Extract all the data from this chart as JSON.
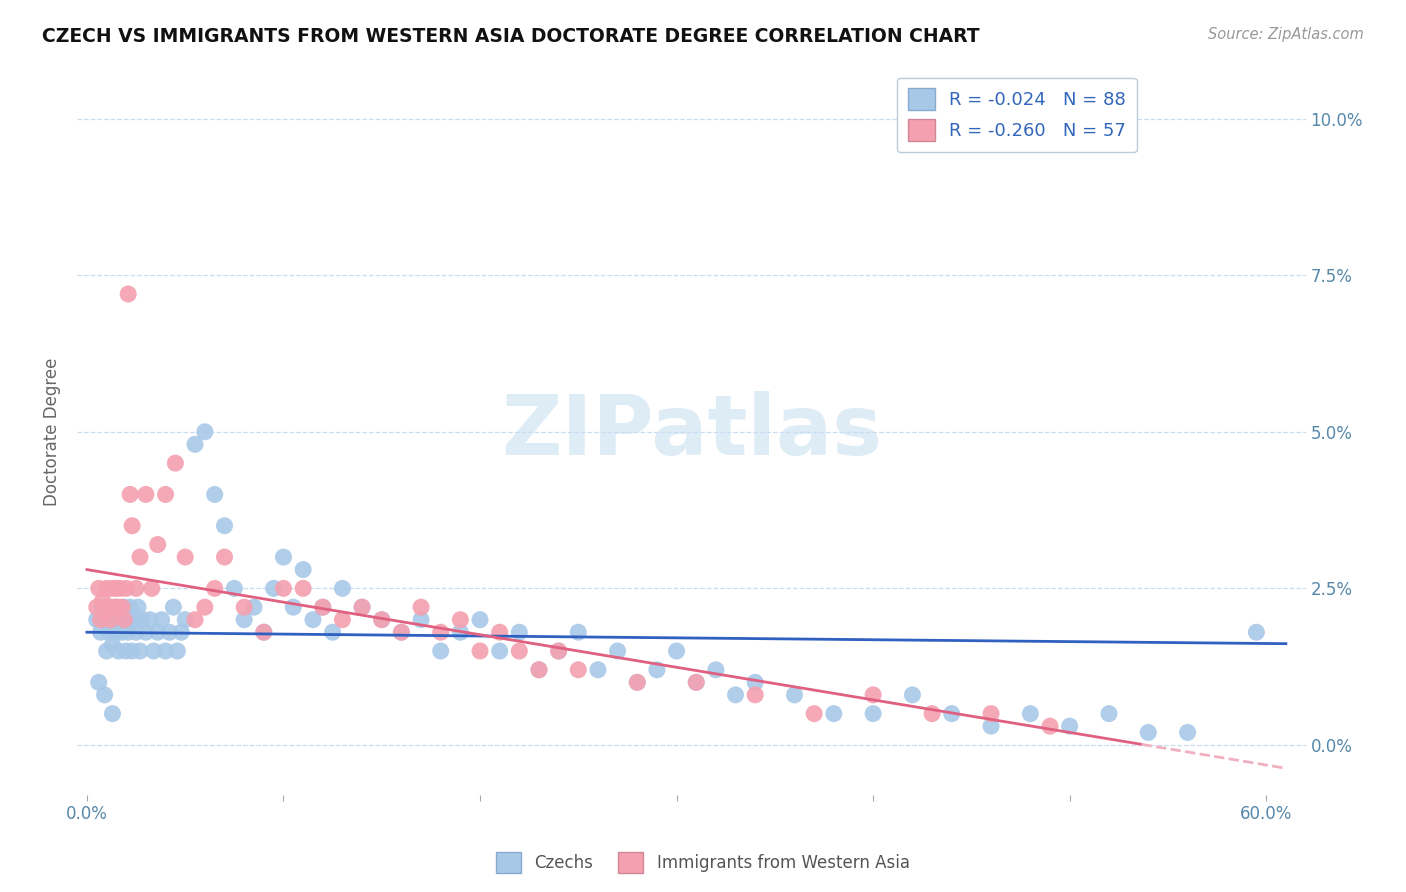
{
  "title": "CZECH VS IMMIGRANTS FROM WESTERN ASIA DOCTORATE DEGREE CORRELATION CHART",
  "source": "Source: ZipAtlas.com",
  "ylabel_label": "Doctorate Degree",
  "ylabel_ticks_labels": [
    "0.0%",
    "2.5%",
    "5.0%",
    "7.5%",
    "10.0%"
  ],
  "ylabel_ticks_vals": [
    0.0,
    0.025,
    0.05,
    0.075,
    0.1
  ],
  "xlim": [
    -0.005,
    0.62
  ],
  "ylim": [
    -0.008,
    0.108
  ],
  "legend_entry_1": "R = -0.024   N = 88",
  "legend_entry_2": "R = -0.260   N = 57",
  "legend_label_1": "Czechs",
  "legend_label_2": "Immigrants from Western Asia",
  "color_blue": "#a8c8e8",
  "color_pink": "#f4a0b0",
  "line_color_blue": "#3060c0",
  "line_color_pink": "#e06080",
  "line_color_pink_dashed": "#f0b0c0",
  "watermark_color": "#c8e0f0",
  "R1": -0.024,
  "N1": 88,
  "R2": -0.26,
  "N2": 57,
  "blue_intercept": 0.018,
  "blue_slope": -0.003,
  "pink_intercept": 0.028,
  "pink_slope": -0.052,
  "scatter_blue_x": [
    0.005,
    0.007,
    0.008,
    0.01,
    0.01,
    0.011,
    0.012,
    0.013,
    0.014,
    0.015,
    0.015,
    0.016,
    0.017,
    0.018,
    0.019,
    0.02,
    0.02,
    0.021,
    0.022,
    0.023,
    0.024,
    0.025,
    0.026,
    0.027,
    0.028,
    0.03,
    0.032,
    0.034,
    0.036,
    0.038,
    0.04,
    0.042,
    0.044,
    0.046,
    0.048,
    0.05,
    0.055,
    0.06,
    0.065,
    0.07,
    0.075,
    0.08,
    0.085,
    0.09,
    0.095,
    0.1,
    0.105,
    0.11,
    0.115,
    0.12,
    0.125,
    0.13,
    0.14,
    0.15,
    0.16,
    0.17,
    0.18,
    0.19,
    0.2,
    0.21,
    0.22,
    0.23,
    0.24,
    0.25,
    0.26,
    0.27,
    0.28,
    0.29,
    0.3,
    0.31,
    0.32,
    0.33,
    0.34,
    0.36,
    0.38,
    0.4,
    0.42,
    0.44,
    0.46,
    0.48,
    0.5,
    0.52,
    0.54,
    0.56,
    0.006,
    0.009,
    0.013,
    0.595
  ],
  "scatter_blue_y": [
    0.02,
    0.018,
    0.022,
    0.015,
    0.02,
    0.018,
    0.022,
    0.016,
    0.02,
    0.018,
    0.022,
    0.015,
    0.02,
    0.018,
    0.022,
    0.015,
    0.02,
    0.018,
    0.022,
    0.015,
    0.02,
    0.018,
    0.022,
    0.015,
    0.02,
    0.018,
    0.02,
    0.015,
    0.018,
    0.02,
    0.015,
    0.018,
    0.022,
    0.015,
    0.018,
    0.02,
    0.048,
    0.05,
    0.04,
    0.035,
    0.025,
    0.02,
    0.022,
    0.018,
    0.025,
    0.03,
    0.022,
    0.028,
    0.02,
    0.022,
    0.018,
    0.025,
    0.022,
    0.02,
    0.018,
    0.02,
    0.015,
    0.018,
    0.02,
    0.015,
    0.018,
    0.012,
    0.015,
    0.018,
    0.012,
    0.015,
    0.01,
    0.012,
    0.015,
    0.01,
    0.012,
    0.008,
    0.01,
    0.008,
    0.005,
    0.005,
    0.008,
    0.005,
    0.003,
    0.005,
    0.003,
    0.005,
    0.002,
    0.002,
    0.01,
    0.008,
    0.005,
    0.018
  ],
  "scatter_pink_x": [
    0.005,
    0.006,
    0.007,
    0.008,
    0.009,
    0.01,
    0.011,
    0.012,
    0.013,
    0.014,
    0.015,
    0.016,
    0.017,
    0.018,
    0.019,
    0.02,
    0.021,
    0.022,
    0.023,
    0.025,
    0.027,
    0.03,
    0.033,
    0.036,
    0.04,
    0.045,
    0.05,
    0.055,
    0.06,
    0.065,
    0.07,
    0.08,
    0.09,
    0.1,
    0.11,
    0.12,
    0.13,
    0.14,
    0.15,
    0.16,
    0.17,
    0.18,
    0.19,
    0.2,
    0.21,
    0.22,
    0.23,
    0.24,
    0.25,
    0.28,
    0.31,
    0.34,
    0.37,
    0.4,
    0.43,
    0.46,
    0.49
  ],
  "scatter_pink_y": [
    0.022,
    0.025,
    0.02,
    0.023,
    0.021,
    0.025,
    0.022,
    0.02,
    0.025,
    0.022,
    0.025,
    0.022,
    0.025,
    0.022,
    0.02,
    0.025,
    0.072,
    0.04,
    0.035,
    0.025,
    0.03,
    0.04,
    0.025,
    0.032,
    0.04,
    0.045,
    0.03,
    0.02,
    0.022,
    0.025,
    0.03,
    0.022,
    0.018,
    0.025,
    0.025,
    0.022,
    0.02,
    0.022,
    0.02,
    0.018,
    0.022,
    0.018,
    0.02,
    0.015,
    0.018,
    0.015,
    0.012,
    0.015,
    0.012,
    0.01,
    0.01,
    0.008,
    0.005,
    0.008,
    0.005,
    0.005,
    0.003
  ]
}
